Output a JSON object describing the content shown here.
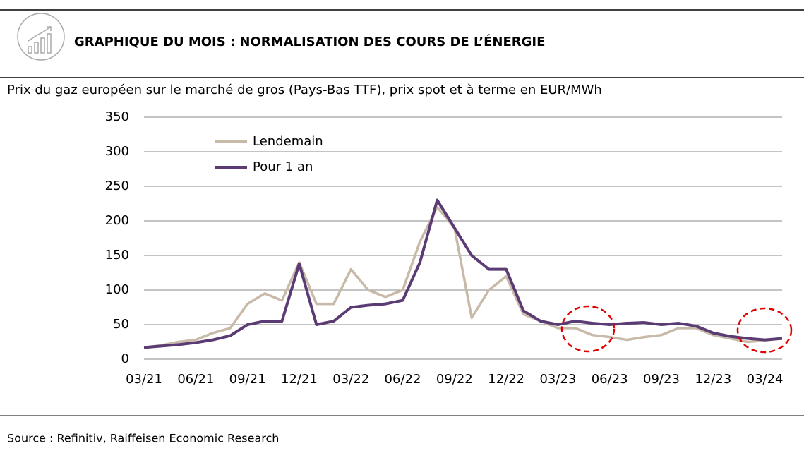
{
  "header": {
    "title": "GRAPHIQUE DU MOIS : NORMALISATION DES COURS DE L’ÉNERGIE"
  },
  "chart_data": {
    "type": "line",
    "title": "Prix du gaz européen sur le marché de gros (Pays-Bas TTF), prix spot et à terme en EUR/MWh",
    "categories": [
      "03/21",
      null,
      null,
      "06/21",
      null,
      null,
      "09/21",
      null,
      null,
      "12/21",
      null,
      null,
      "03/22",
      null,
      null,
      "06/22",
      null,
      null,
      "09/22",
      null,
      null,
      "12/22",
      null,
      null,
      "03/23",
      null,
      null,
      "06/23",
      null,
      null,
      "09/23",
      null,
      null,
      "12/23",
      null,
      null,
      "03/24",
      null
    ],
    "series": [
      {
        "name": "Lendemain",
        "color": "#c8b9a8",
        "values": [
          17,
          20,
          25,
          28,
          38,
          45,
          80,
          95,
          85,
          140,
          80,
          80,
          130,
          100,
          90,
          100,
          170,
          220,
          190,
          60,
          100,
          120,
          65,
          55,
          45,
          45,
          35,
          32,
          28,
          32,
          35,
          45,
          45,
          35,
          30,
          25,
          27,
          30
        ]
      },
      {
        "name": "Pour 1 an",
        "color": "#5a3b73",
        "values": [
          17,
          19,
          21,
          24,
          28,
          34,
          50,
          55,
          55,
          138,
          50,
          55,
          75,
          78,
          80,
          85,
          140,
          230,
          190,
          150,
          130,
          130,
          70,
          55,
          50,
          55,
          52,
          50,
          52,
          53,
          50,
          52,
          48,
          38,
          33,
          30,
          28,
          30
        ]
      }
    ],
    "ylim": [
      0,
      350
    ],
    "yticks": [
      0,
      50,
      100,
      150,
      200,
      250,
      300,
      350
    ],
    "grid": true
  },
  "footer": {
    "source": "Source : Refinitiv, Raiffeisen Economic Research"
  }
}
